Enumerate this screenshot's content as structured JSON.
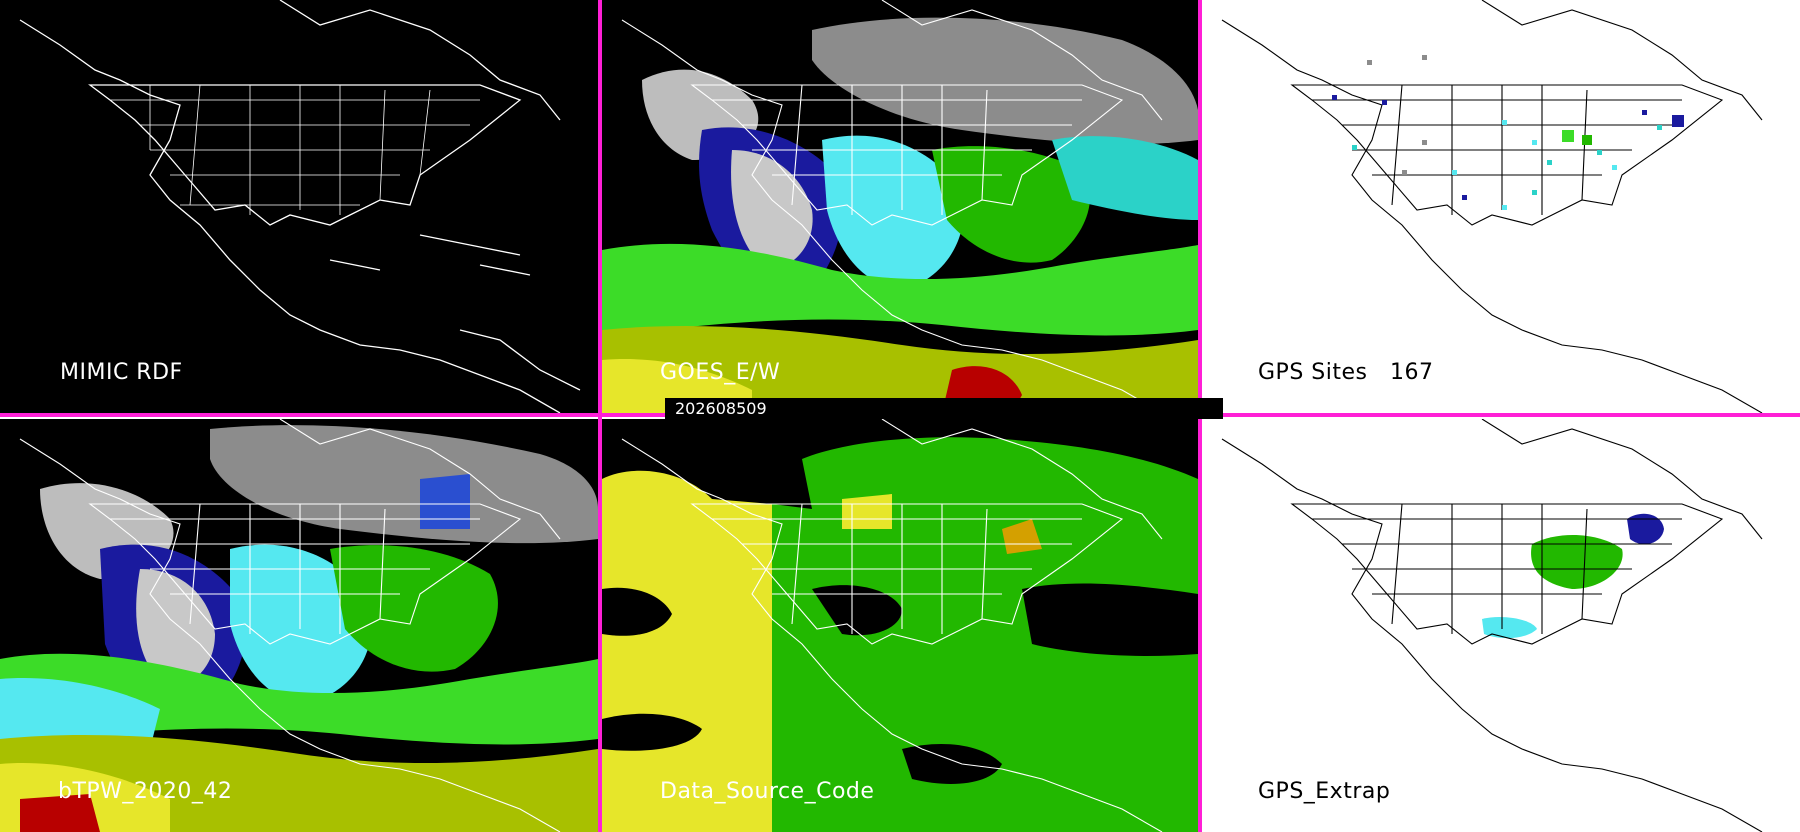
{
  "panels": [
    {
      "label": "MIMIC RDF",
      "theme": "dark"
    },
    {
      "label": "GOES_E/W",
      "theme": "dark"
    },
    {
      "label": "GPS Sites   167",
      "theme": "light"
    },
    {
      "label": "bTPW_2020_42",
      "theme": "dark"
    },
    {
      "label": "Data_Source_Code",
      "theme": "dark"
    },
    {
      "label": "GPS_Extrap",
      "theme": "light"
    }
  ],
  "timestamp": "202608509",
  "colors": {
    "separator": "#ff1fd6",
    "background_dark": "#000000",
    "background_light": "#ffffff",
    "coastline_dark": "#ffffff",
    "coastline_light": "#000000",
    "tpw_palette": [
      "#c8c8c8",
      "#1a1a9e",
      "#2a4fd0",
      "#55e8f0",
      "#2bd2c8",
      "#22b800",
      "#3cdc28",
      "#a8c000",
      "#e6e62a",
      "#d47a00",
      "#b80000"
    ]
  }
}
